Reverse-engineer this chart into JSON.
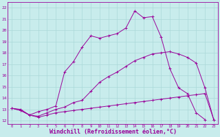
{
  "background_color": "#c8ecec",
  "line_color": "#990099",
  "grid_color": "#aad8d8",
  "xlabel": "Windchill (Refroidissement éolien,°C)",
  "xlabel_fontsize": 6.0,
  "ylabel_ticks": [
    12,
    13,
    14,
    15,
    16,
    17,
    18,
    19,
    20,
    21,
    22
  ],
  "xtick_labels": [
    "0",
    "1",
    "2",
    "3",
    "4",
    "5",
    "6",
    "7",
    "8",
    "9",
    "10",
    "11",
    "12",
    "13",
    "14",
    "15",
    "16",
    "17",
    "18",
    "19",
    "20",
    "21",
    "22",
    "23"
  ],
  "xlim": [
    -0.5,
    23.5
  ],
  "ylim": [
    11.7,
    22.5
  ],
  "series1": [
    [
      0,
      13.1
    ],
    [
      1,
      12.9
    ],
    [
      2,
      12.5
    ],
    [
      3,
      12.3
    ],
    [
      4,
      12.5
    ],
    [
      5,
      12.7
    ],
    [
      6,
      12.8
    ],
    [
      7,
      12.9
    ],
    [
      8,
      13.0
    ],
    [
      9,
      13.1
    ],
    [
      10,
      13.2
    ],
    [
      11,
      13.3
    ],
    [
      12,
      13.4
    ],
    [
      13,
      13.5
    ],
    [
      14,
      13.6
    ],
    [
      15,
      13.7
    ],
    [
      16,
      13.8
    ],
    [
      17,
      13.9
    ],
    [
      18,
      14.0
    ],
    [
      19,
      14.1
    ],
    [
      20,
      14.2
    ],
    [
      21,
      14.3
    ],
    [
      22,
      14.4
    ],
    [
      23,
      12.1
    ]
  ],
  "series2": [
    [
      0,
      13.1
    ],
    [
      1,
      13.0
    ],
    [
      2,
      12.5
    ],
    [
      3,
      12.8
    ],
    [
      4,
      13.0
    ],
    [
      5,
      13.3
    ],
    [
      6,
      16.3
    ],
    [
      7,
      17.2
    ],
    [
      8,
      18.5
    ],
    [
      9,
      19.5
    ],
    [
      10,
      19.3
    ],
    [
      11,
      19.5
    ],
    [
      12,
      19.7
    ],
    [
      13,
      20.2
    ],
    [
      14,
      21.7
    ],
    [
      15,
      21.1
    ],
    [
      16,
      21.2
    ],
    [
      17,
      19.4
    ],
    [
      18,
      16.6
    ],
    [
      19,
      14.9
    ],
    [
      20,
      14.4
    ],
    [
      21,
      12.7
    ],
    [
      22,
      12.1
    ]
  ],
  "series3": [
    [
      0,
      13.1
    ],
    [
      1,
      12.9
    ],
    [
      2,
      12.5
    ],
    [
      3,
      12.4
    ],
    [
      4,
      12.7
    ],
    [
      5,
      13.0
    ],
    [
      6,
      13.2
    ],
    [
      7,
      13.6
    ],
    [
      8,
      13.8
    ],
    [
      9,
      14.6
    ],
    [
      10,
      15.4
    ],
    [
      11,
      15.9
    ],
    [
      12,
      16.3
    ],
    [
      13,
      16.8
    ],
    [
      14,
      17.3
    ],
    [
      15,
      17.6
    ],
    [
      16,
      17.9
    ],
    [
      17,
      18.0
    ],
    [
      18,
      18.1
    ],
    [
      19,
      17.9
    ],
    [
      20,
      17.6
    ],
    [
      21,
      17.1
    ],
    [
      22,
      14.9
    ],
    [
      23,
      12.1
    ]
  ]
}
